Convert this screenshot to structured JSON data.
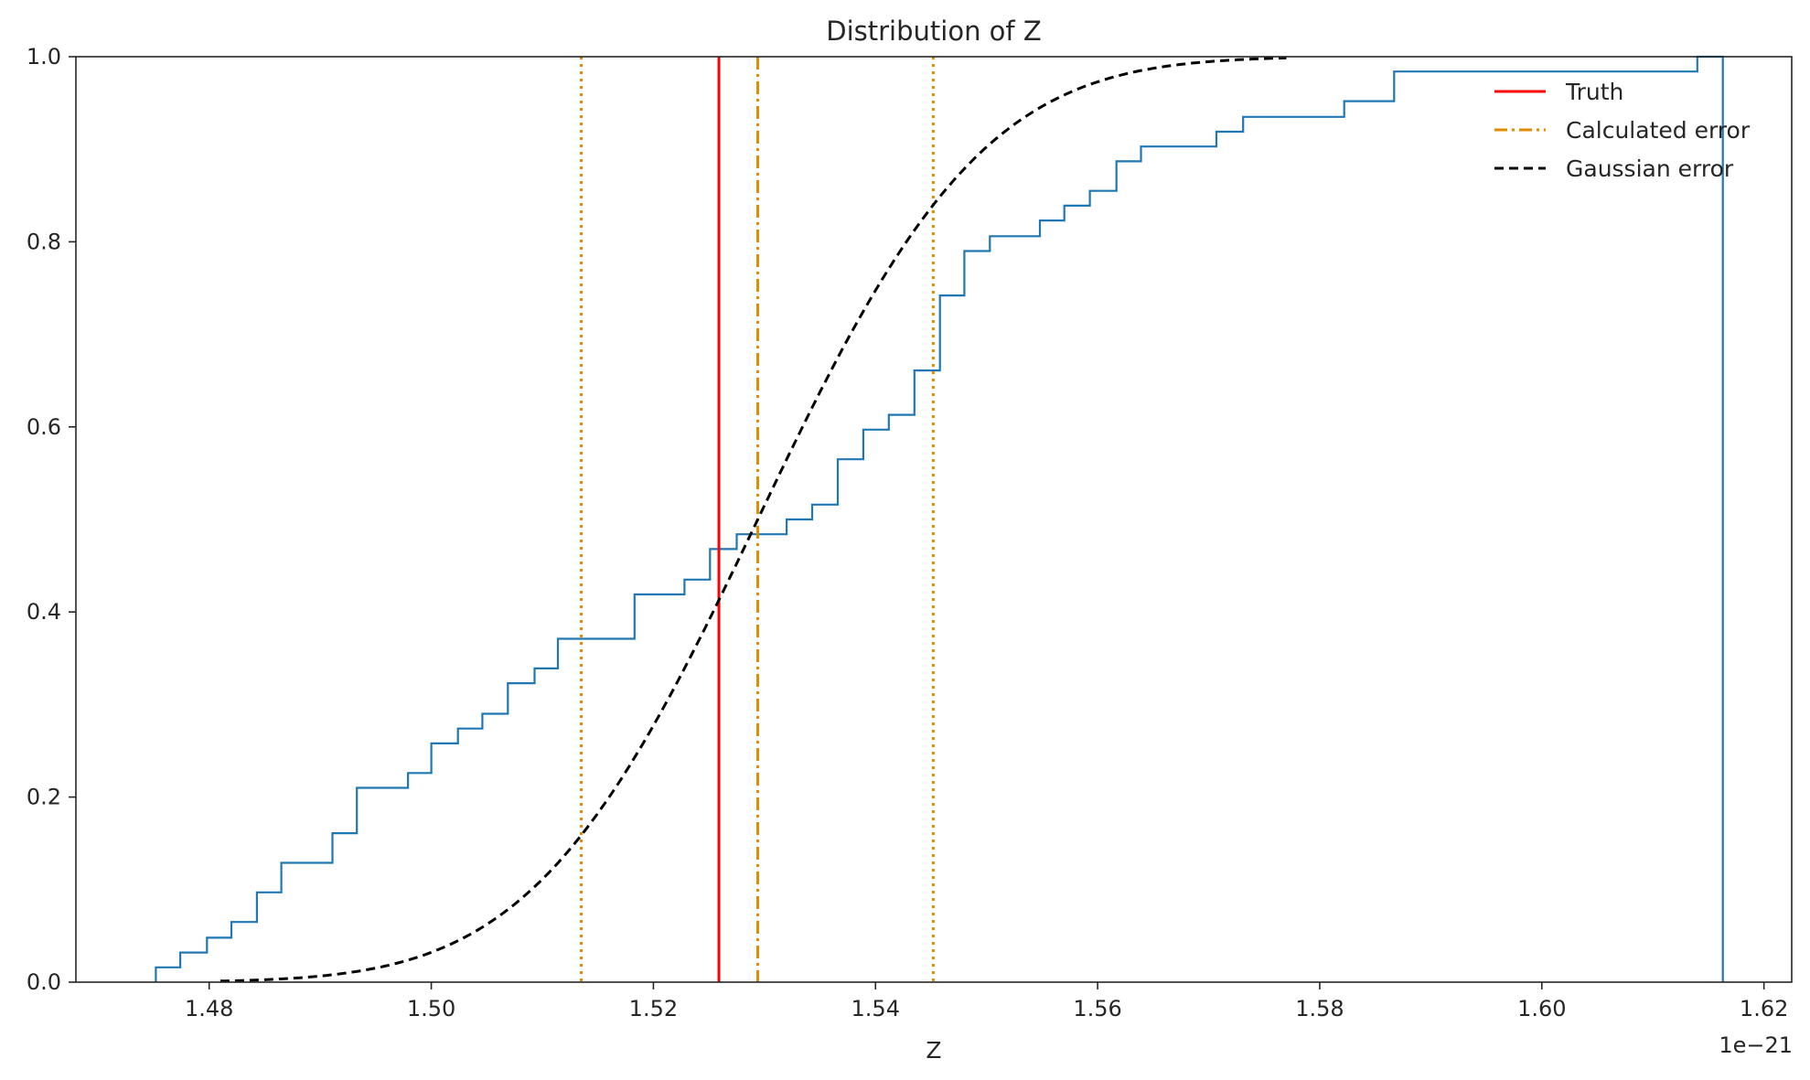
{
  "chart_data": {
    "type": "line",
    "title": "Distribution of Z",
    "xlabel": "Z",
    "ylabel": "",
    "x_offset_label": "1e−21",
    "xlim": [
      1.468,
      1.6225
    ],
    "ylim": [
      0,
      1.0
    ],
    "grid": false,
    "legend_position": "top-right",
    "x_ticks": [
      1.48,
      1.5,
      1.52,
      1.54,
      1.56,
      1.58,
      1.6,
      1.62
    ],
    "x_tick_labels": [
      "1.48",
      "1.50",
      "1.52",
      "1.54",
      "1.56",
      "1.58",
      "1.60",
      "1.62"
    ],
    "y_ticks": [
      0.0,
      0.2,
      0.4,
      0.6,
      0.8,
      1.0
    ],
    "y_tick_labels": [
      "0.0",
      "0.2",
      "0.4",
      "0.6",
      "0.8",
      "1.0"
    ],
    "series": [
      {
        "kind": "step",
        "color": "#1f77b4",
        "x": [
          1.4752,
          1.4774,
          1.4798,
          1.482,
          1.4843,
          1.4865,
          1.4911,
          1.4933,
          1.4979,
          1.5,
          1.5024,
          1.5046,
          1.5069,
          1.5093,
          1.5114,
          1.5137,
          1.5183,
          1.5228,
          1.5251,
          1.5275,
          1.532,
          1.5343,
          1.5366,
          1.5389,
          1.5412,
          1.5435,
          1.5458,
          1.548,
          1.5503,
          1.5548,
          1.557,
          1.5593,
          1.5617,
          1.5639,
          1.5707,
          1.5731,
          1.5822,
          1.5867,
          1.614,
          1.6163
        ],
        "y": [
          0.016,
          0.032,
          0.048,
          0.065,
          0.097,
          0.129,
          0.161,
          0.21,
          0.226,
          0.258,
          0.274,
          0.29,
          0.323,
          0.339,
          0.371,
          0.371,
          0.419,
          0.435,
          0.468,
          0.484,
          0.5,
          0.516,
          0.565,
          0.597,
          0.613,
          0.661,
          0.742,
          0.79,
          0.806,
          0.823,
          0.839,
          0.855,
          0.887,
          0.903,
          0.919,
          0.935,
          0.952,
          0.984,
          1.0,
          0.0
        ]
      },
      {
        "name": "Truth",
        "kind": "vline",
        "color": "#ff0000",
        "dash": "solid",
        "x": 1.5259
      },
      {
        "name": "Calculated error",
        "kind": "vline",
        "color": "#e08b00",
        "dash": "dashdot",
        "x": 1.5294
      },
      {
        "kind": "vline",
        "color": "#e08b00",
        "dash": "dotted",
        "x": 1.5135
      },
      {
        "kind": "vline",
        "color": "#e08b00",
        "dash": "dotted",
        "x": 1.5452
      },
      {
        "name": "Gaussian error",
        "kind": "gaussian_cdf",
        "color": "#000000",
        "dash": "dashed",
        "mean": 1.5294,
        "sigma": 0.0159,
        "x_range": [
          1.481,
          1.577
        ]
      }
    ]
  }
}
